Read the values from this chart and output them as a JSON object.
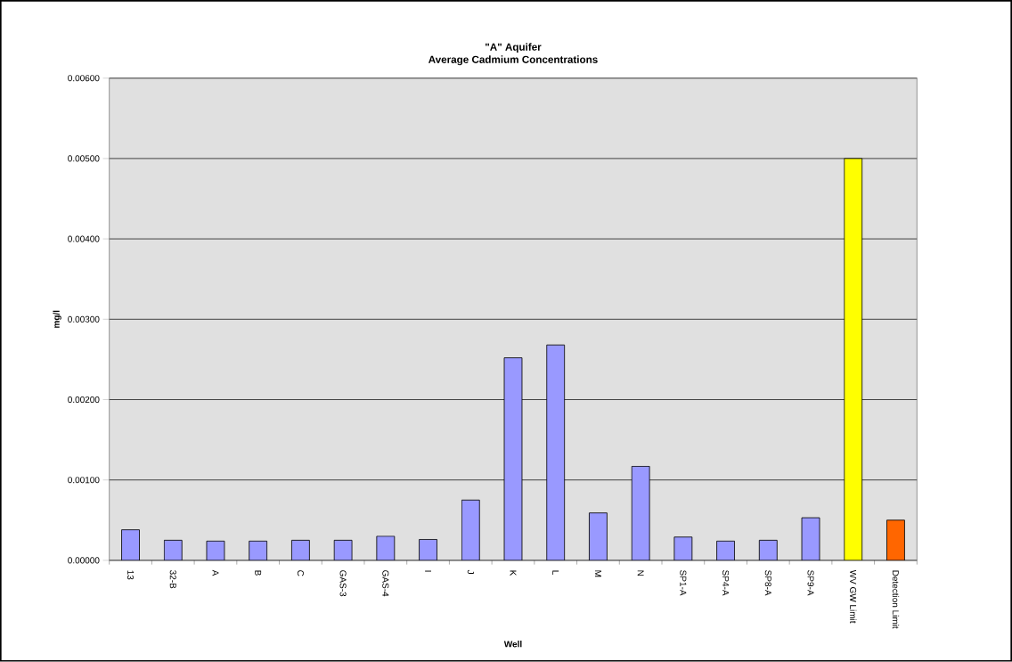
{
  "chart_data": {
    "type": "bar",
    "title": "\"A\" Aquifer",
    "subtitle": "Average Cadmium Concentrations",
    "xlabel": "Well",
    "ylabel": "mg/l",
    "categories": [
      "13",
      "32-B",
      "A",
      "B",
      "C",
      "GAS-3",
      "GAS-4",
      "I",
      "J",
      "K",
      "L",
      "M",
      "N",
      "SP1-A",
      "SP4-A",
      "SP8-A",
      "SP9-A",
      "WV GW Limit",
      "Detection Limit"
    ],
    "values": [
      0.00038,
      0.00025,
      0.00024,
      0.00024,
      0.00025,
      0.00025,
      0.0003,
      0.00026,
      0.00075,
      0.00252,
      0.00268,
      0.00059,
      0.00117,
      0.00029,
      0.00024,
      0.00025,
      0.00053,
      0.005,
      0.0005
    ],
    "colors": [
      "#9999ff",
      "#9999ff",
      "#9999ff",
      "#9999ff",
      "#9999ff",
      "#9999ff",
      "#9999ff",
      "#9999ff",
      "#9999ff",
      "#9999ff",
      "#9999ff",
      "#9999ff",
      "#9999ff",
      "#9999ff",
      "#9999ff",
      "#9999ff",
      "#9999ff",
      "#ffff00",
      "#ff6600"
    ],
    "ylim": [
      0,
      0.006
    ],
    "yticks": [
      {
        "value": 0,
        "label": "0.00000"
      },
      {
        "value": 0.001,
        "label": "0.00100"
      },
      {
        "value": 0.002,
        "label": "0.00200"
      },
      {
        "value": 0.003,
        "label": "0.00300"
      },
      {
        "value": 0.004,
        "label": "0.00400"
      },
      {
        "value": 0.005,
        "label": "0.00500"
      },
      {
        "value": 0.006,
        "label": "0.00600"
      }
    ],
    "grid": "y"
  }
}
